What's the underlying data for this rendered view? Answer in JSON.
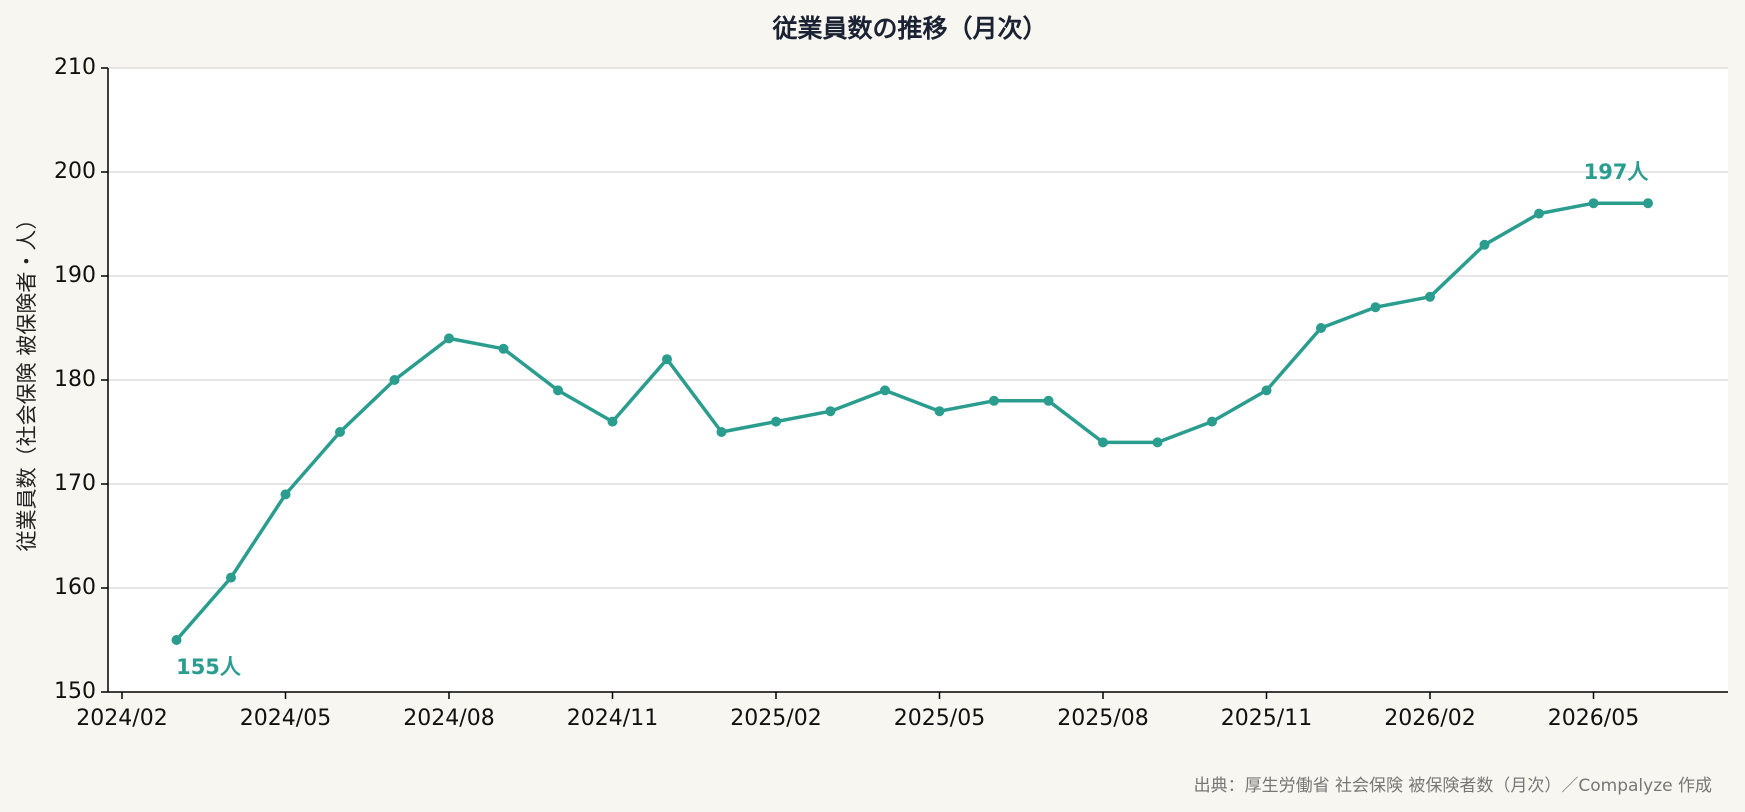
{
  "chart_data": {
    "type": "line",
    "title": "従業員数の推移（月次）",
    "y_label": "従業員数（社会保険 被保険者・人）",
    "source": "出典：厚生労働省 社会保険 被保険者数（月次）／Compalyze 作成",
    "x": [
      "2024/03",
      "2024/04",
      "2024/05",
      "2024/06",
      "2024/07",
      "2024/08",
      "2024/09",
      "2024/10",
      "2024/11",
      "2024/12",
      "2025/01",
      "2025/02",
      "2025/03",
      "2025/04",
      "2025/05",
      "2025/06",
      "2025/07",
      "2025/08",
      "2025/09",
      "2025/10",
      "2025/11",
      "2025/12",
      "2026/01",
      "2026/02",
      "2026/03",
      "2026/04",
      "2026/05",
      "2026/06"
    ],
    "series": [
      {
        "name": "従業員数",
        "color": "#2a9d8f",
        "values": [
          155,
          161,
          169,
          175,
          180,
          184,
          183,
          179,
          176,
          182,
          175,
          176,
          177,
          179,
          177,
          178,
          178,
          174,
          174,
          176,
          179,
          185,
          187,
          188,
          193,
          196,
          197,
          197
        ],
        "value_labels": [
          "155人",
          null,
          null,
          null,
          null,
          null,
          null,
          null,
          null,
          null,
          null,
          null,
          null,
          null,
          null,
          null,
          null,
          null,
          null,
          null,
          null,
          null,
          null,
          null,
          null,
          null,
          null,
          "197人"
        ]
      }
    ],
    "xticks": [
      "2024/02",
      "2024/05",
      "2024/08",
      "2024/11",
      "2025/02",
      "2025/05",
      "2025/08",
      "2025/11",
      "2026/02",
      "2026/05"
    ],
    "ylim": [
      150,
      210
    ],
    "yticks": [
      150,
      160,
      170,
      180,
      190,
      200,
      210
    ],
    "grid": true
  }
}
